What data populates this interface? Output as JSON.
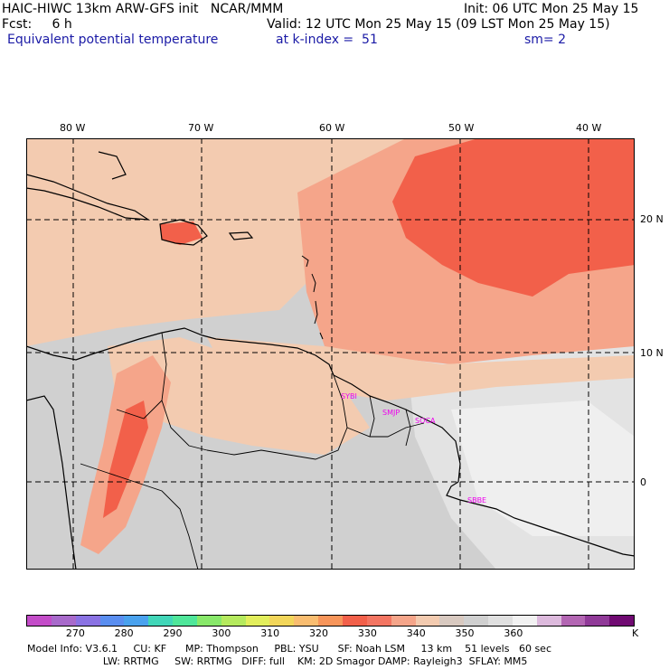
{
  "header": {
    "line1_left": "HAIC-HIWC 13km ARW-GFS init   NCAR/MMM",
    "line1_right": "Init: 06 UTC Mon 25 May 15",
    "line2_left": "Fcst:     6 h",
    "line2_right": "Valid: 12 UTC Mon 25 May 15 (09 LST Mon 25 May 15)",
    "line3_field": "Equivalent potential temperature",
    "line3_level": "at k-index =  51",
    "line3_smooth": "sm= 2"
  },
  "axes": {
    "lon_labels": [
      "80 W",
      "70 W",
      "60 W",
      "50 W",
      "40 W"
    ],
    "lat_labels": [
      "20 N",
      "10 N",
      "0"
    ]
  },
  "stations": [
    "SYBI",
    "SMJP",
    "SOCA",
    "SBBE"
  ],
  "colorbar": {
    "colors": [
      "#c34cc8",
      "#a86acb",
      "#8a72e3",
      "#5a8ef0",
      "#4aa2ee",
      "#41d6b8",
      "#4fe69a",
      "#88e86a",
      "#b5ea5e",
      "#e2ee5c",
      "#f2d65a",
      "#f9bd70",
      "#f7955a",
      "#f2604a",
      "#f37562",
      "#f5a58a",
      "#f3cbb0",
      "#d8c9c0",
      "#d0d0d0",
      "#e0e0e0",
      "#f2f2f2",
      "#ddbadd",
      "#b366b3",
      "#903a98",
      "#700a72"
    ],
    "labels": [
      "270",
      "280",
      "290",
      "300",
      "310",
      "320",
      "330",
      "340",
      "350",
      "360"
    ],
    "unit": "K"
  },
  "model_info": {
    "line1": "Model Info: V3.6.1     CU: KF      MP: Thompson     PBL: YSU      SF: Noah LSM     13 km    51 levels   60 sec",
    "line2": "                        LW: RRTMG     SW: RRTMG   DIFF: full    KM: 2D Smagor DAMP: Rayleigh3  SFLAY: MM5"
  }
}
